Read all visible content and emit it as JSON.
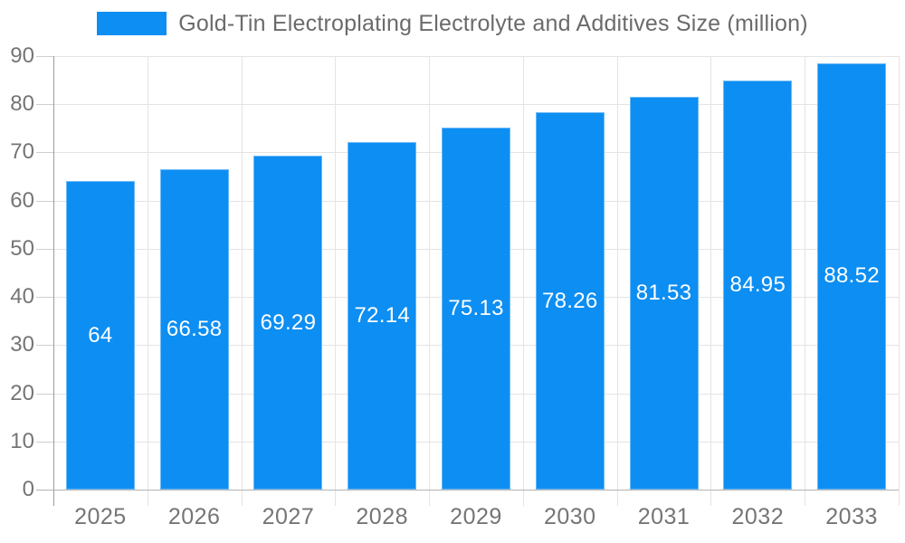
{
  "legend": {
    "series_label": "Gold-Tin Electroplating Electrolyte and Additives Size (million)"
  },
  "chart_data": {
    "type": "bar",
    "title": "Gold-Tin Electroplating Electrolyte and Additives Size (million)",
    "categories": [
      "2025",
      "2026",
      "2027",
      "2028",
      "2029",
      "2030",
      "2031",
      "2032",
      "2033"
    ],
    "values": [
      64,
      66.58,
      69.29,
      72.14,
      75.13,
      78.26,
      81.53,
      84.95,
      88.52
    ],
    "value_labels": [
      "64",
      "66.58",
      "69.29",
      "72.14",
      "75.13",
      "78.26",
      "81.53",
      "84.95",
      "88.52"
    ],
    "xlabel": "",
    "ylabel": "",
    "ylim": [
      0,
      90
    ],
    "y_tick_step": 10,
    "y_tick_labels": [
      "0",
      "10",
      "20",
      "30",
      "40",
      "50",
      "60",
      "70",
      "80",
      "90"
    ],
    "grid": true,
    "legend_position": "top",
    "colors": {
      "bar": "#0d8ef2",
      "bar_border": "#6db9f7",
      "grid": "#e4e4e4",
      "tick": "#cfcfcf",
      "y_axis": "#9c9c9c",
      "x_axis": "#b3b3b3",
      "axis_label": "#757575",
      "title_text": "#6b6b6b",
      "value_label": "#ffffff",
      "background": "#ffffff"
    }
  }
}
